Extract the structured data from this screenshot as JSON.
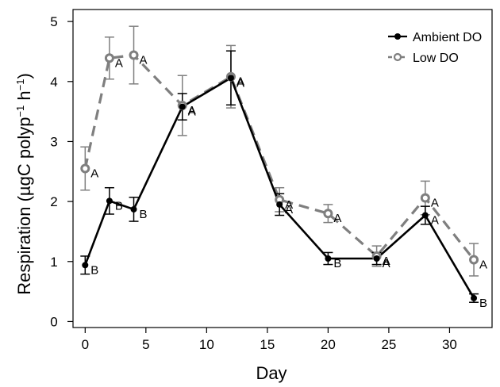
{
  "chart_data": {
    "type": "line",
    "xlabel": "Day",
    "ylabel": "Respiration (µgC polyp",
    "ylabel_sup1": "−1",
    "ylabel_mid": " h",
    "ylabel_sup2": "−1",
    "ylabel_end": ")",
    "xlim": [
      -1,
      33.5
    ],
    "ylim": [
      -0.1,
      5.2
    ],
    "xticks": [
      0,
      5,
      10,
      15,
      20,
      25,
      30
    ],
    "yticks": [
      0,
      1,
      2,
      3,
      4,
      5
    ],
    "legend_position": "top-right",
    "grid": false,
    "series": [
      {
        "name": "Ambient DO",
        "color": "#000000",
        "style": "solid",
        "marker": "filled-circle",
        "x": [
          0,
          2,
          4,
          8,
          12,
          16,
          20,
          24,
          28,
          32
        ],
        "y": [
          0.94,
          2.01,
          1.87,
          3.58,
          4.06,
          1.95,
          1.05,
          1.05,
          1.77,
          0.39
        ],
        "err": [
          0.15,
          0.22,
          0.2,
          0.22,
          0.45,
          0.18,
          0.1,
          0.1,
          0.15,
          0.07
        ],
        "labels": [
          "B",
          "B",
          "B",
          "A",
          "A",
          "A",
          "B",
          "A",
          "A",
          "B"
        ]
      },
      {
        "name": "Low DO",
        "color": "#7f7f7f",
        "style": "dashed",
        "marker": "open-circle",
        "x": [
          0,
          2,
          4,
          8,
          12,
          16,
          20,
          24,
          28,
          32
        ],
        "y": [
          2.55,
          4.39,
          4.44,
          3.6,
          4.08,
          2.03,
          1.8,
          1.09,
          2.06,
          1.03
        ],
        "err": [
          0.36,
          0.35,
          0.48,
          0.5,
          0.52,
          0.2,
          0.15,
          0.17,
          0.28,
          0.27
        ],
        "labels": [
          "A",
          "A",
          "A",
          "A",
          "A",
          "A",
          "A",
          "A",
          "A",
          "A"
        ]
      }
    ]
  }
}
